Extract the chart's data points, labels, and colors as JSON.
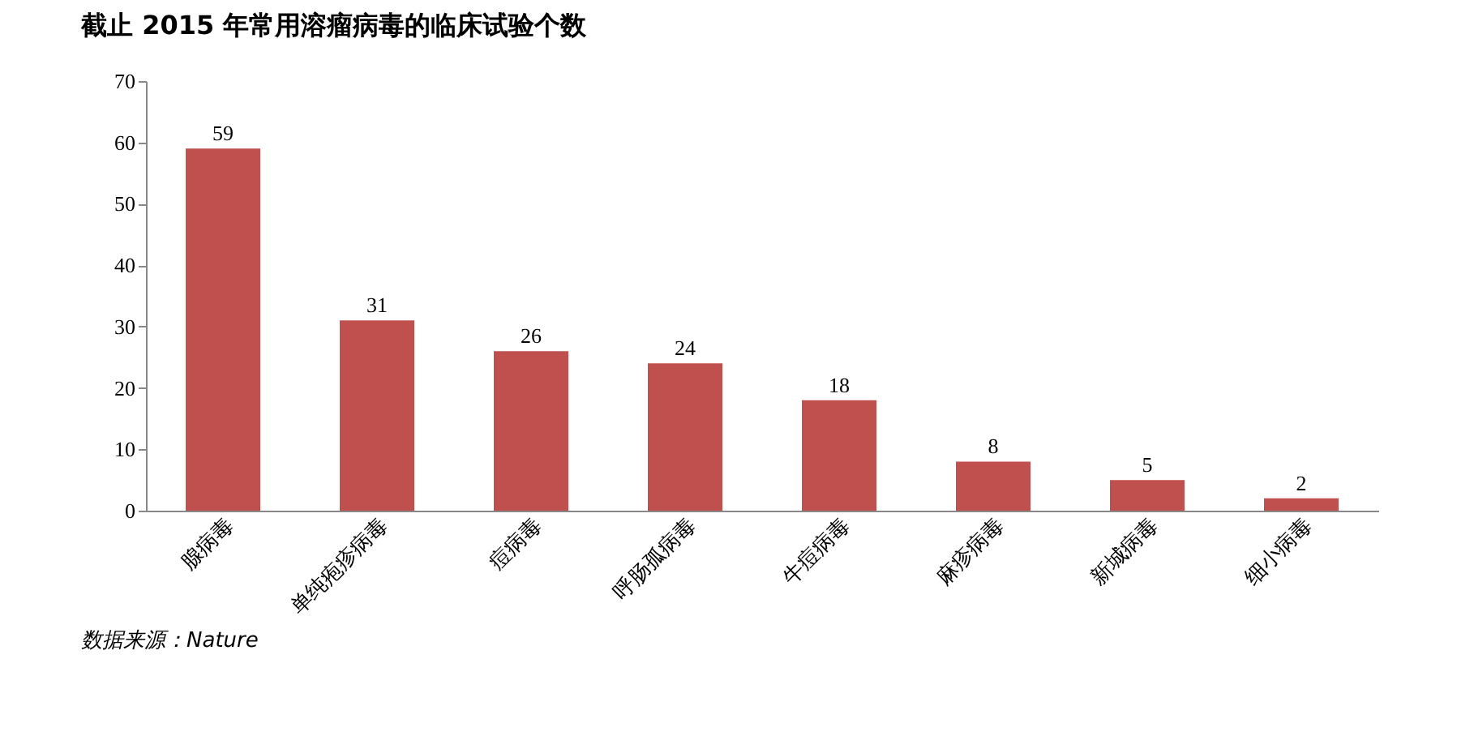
{
  "chart_data": {
    "type": "bar",
    "title": "截止 2015 年常用溶瘤病毒的临床试验个数",
    "categories": [
      "腺病毒",
      "单纯疱疹病毒",
      "痘病毒",
      "呼肠孤病毒",
      "牛痘病毒",
      "麻疹病毒",
      "新城病毒",
      "细小病毒"
    ],
    "values": [
      59,
      31,
      26,
      24,
      18,
      8,
      5,
      2
    ],
    "color": "#c0504d",
    "ylim": [
      0,
      70
    ],
    "yticks": [
      0,
      10,
      20,
      30,
      40,
      50,
      60,
      70
    ],
    "grid": false,
    "data_labels": true,
    "annotations": [
      "数据来源：Nature"
    ]
  }
}
